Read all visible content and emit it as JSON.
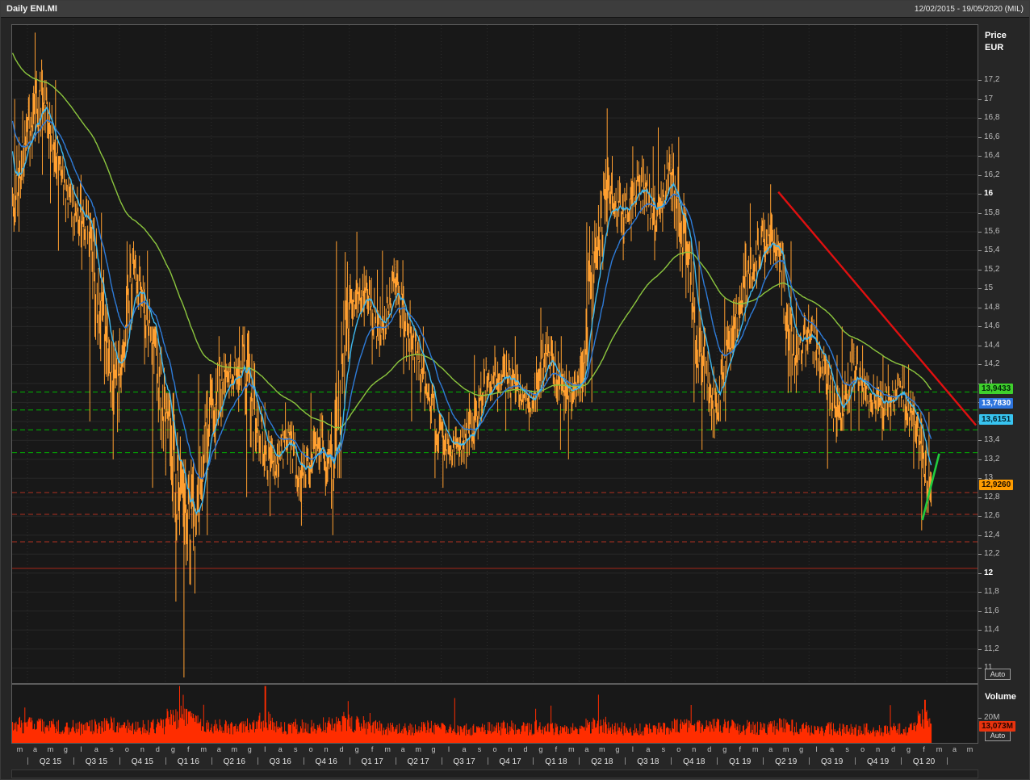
{
  "topbar": {
    "title": "Daily ENI.MI",
    "date_range": "12/02/2015 - 19/05/2020 (MIL)"
  },
  "axis": {
    "price_title_line1": "Price",
    "price_title_line2": "EUR",
    "volume_title": "Volume",
    "auto_label": "Auto",
    "volume_tick_label": "20M"
  },
  "price_markers": [
    {
      "name": "ma-green-marker",
      "text": "13,9433",
      "price": 13.9433,
      "bg": "#3fd12c",
      "fg": "#03290a"
    },
    {
      "name": "ma-blue-marker",
      "text": "13,7830",
      "price": 13.783,
      "bg": "#2d74dd",
      "fg": "#ffffff"
    },
    {
      "name": "ma-cyan-marker",
      "text": "13,6151",
      "price": 13.6151,
      "bg": "#38c4f0",
      "fg": "#03222e"
    },
    {
      "name": "last-price-marker",
      "text": "12,9260",
      "price": 12.926,
      "bg": "#ff9c00",
      "fg": "#221100"
    }
  ],
  "volume_marker": {
    "name": "volume-value-marker",
    "text": "13,073M",
    "value_m": 13.073,
    "bg": "#e8330e",
    "fg": "#2a0500"
  },
  "colors": {
    "bars": "#ff9f30",
    "volume": "#ff2d00",
    "grid_h": "#272727",
    "grid_v": "#2d2d2d",
    "level_green": "#00b400",
    "level_red_dashed": "#b03020",
    "level_red_solid": "#8c2318",
    "trend_red": "#e01010",
    "trend_green": "#21cc3e"
  },
  "chart_data": {
    "type": "ohlc",
    "instrument": "ENI.MI",
    "exchange": "MIL",
    "timeframe": "Daily",
    "period": "12/02/2015 - 19/05/2020",
    "price_axis": {
      "unit": "EUR",
      "min": 10.84,
      "max": 17.78,
      "tick_min": 11,
      "tick_max": 17.2,
      "tick_step": 0.2,
      "bold_ticks": [
        16,
        12
      ]
    },
    "volume_axis": {
      "max": 46,
      "tick": 20
    },
    "open_start": 15.9,
    "months": [
      "m",
      "a",
      "m",
      "g",
      "l",
      "a",
      "s",
      "o",
      "n",
      "d",
      "g",
      "f",
      "m",
      "a",
      "m",
      "g",
      "l",
      "a",
      "s",
      "o",
      "n",
      "d",
      "g",
      "f",
      "m",
      "a",
      "m",
      "g",
      "l",
      "a",
      "s",
      "o",
      "n",
      "d",
      "g",
      "f",
      "m",
      "a",
      "m",
      "g",
      "l",
      "a",
      "s",
      "o",
      "n",
      "d",
      "g",
      "f",
      "m",
      "a",
      "m",
      "g",
      "l",
      "a",
      "s",
      "o",
      "n",
      "d",
      "g",
      "f",
      "m",
      "a",
      "m"
    ],
    "quarters": [
      "Q2 15",
      "Q3 15",
      "Q4 15",
      "Q1 16",
      "Q2 16",
      "Q3 16",
      "Q4 16",
      "Q1 17",
      "Q2 17",
      "Q3 17",
      "Q4 17",
      "Q1 18",
      "Q2 18",
      "Q3 18",
      "Q4 18",
      "Q1 19",
      "Q2 19",
      "Q3 19",
      "Q4 19",
      "Q1 20"
    ],
    "monthly_ohlc": [
      {
        "c": 16.6,
        "h": 17.0,
        "l": 15.6
      },
      {
        "c": 17.0,
        "h": 17.7,
        "l": 16.2
      },
      {
        "c": 16.3,
        "h": 17.2,
        "l": 15.9
      },
      {
        "c": 15.8,
        "h": 16.4,
        "l": 15.4
      },
      {
        "c": 15.7,
        "h": 16.2,
        "l": 15.2
      },
      {
        "c": 14.5,
        "h": 15.8,
        "l": 13.6
      },
      {
        "c": 14.0,
        "h": 14.9,
        "l": 13.2
      },
      {
        "c": 15.2,
        "h": 15.5,
        "l": 13.9
      },
      {
        "c": 14.6,
        "h": 15.4,
        "l": 14.2
      },
      {
        "c": 13.8,
        "h": 14.6,
        "l": 12.9
      },
      {
        "c": 12.8,
        "h": 13.9,
        "l": 11.7
      },
      {
        "c": 12.5,
        "h": 13.2,
        "l": 10.9
      },
      {
        "c": 13.7,
        "h": 14.1,
        "l": 12.4
      },
      {
        "c": 14.1,
        "h": 14.5,
        "l": 13.2
      },
      {
        "c": 14.2,
        "h": 14.6,
        "l": 13.7
      },
      {
        "c": 13.6,
        "h": 14.6,
        "l": 12.8
      },
      {
        "c": 13.1,
        "h": 13.8,
        "l": 12.6
      },
      {
        "c": 13.4,
        "h": 13.8,
        "l": 12.9
      },
      {
        "c": 13.0,
        "h": 13.6,
        "l": 12.5
      },
      {
        "c": 13.4,
        "h": 13.9,
        "l": 12.9
      },
      {
        "c": 13.1,
        "h": 13.7,
        "l": 12.4
      },
      {
        "c": 14.8,
        "h": 15.5,
        "l": 13.0
      },
      {
        "c": 15.0,
        "h": 15.6,
        "l": 14.6
      },
      {
        "c": 14.6,
        "h": 15.2,
        "l": 14.2
      },
      {
        "c": 15.0,
        "h": 15.4,
        "l": 14.4
      },
      {
        "c": 14.5,
        "h": 15.3,
        "l": 14.1
      },
      {
        "c": 14.0,
        "h": 14.6,
        "l": 13.6
      },
      {
        "c": 13.4,
        "h": 14.0,
        "l": 13.0
      },
      {
        "c": 13.3,
        "h": 13.7,
        "l": 12.9
      },
      {
        "c": 13.5,
        "h": 13.9,
        "l": 13.1
      },
      {
        "c": 14.0,
        "h": 14.3,
        "l": 13.3
      },
      {
        "c": 14.1,
        "h": 14.4,
        "l": 13.7
      },
      {
        "c": 13.9,
        "h": 14.5,
        "l": 13.5
      },
      {
        "c": 13.8,
        "h": 14.1,
        "l": 13.5
      },
      {
        "c": 14.4,
        "h": 14.8,
        "l": 13.7
      },
      {
        "c": 13.8,
        "h": 14.5,
        "l": 13.3
      },
      {
        "c": 13.9,
        "h": 14.2,
        "l": 13.2
      },
      {
        "c": 15.3,
        "h": 15.7,
        "l": 13.8
      },
      {
        "c": 16.0,
        "h": 16.9,
        "l": 15.2
      },
      {
        "c": 15.8,
        "h": 16.4,
        "l": 15.3
      },
      {
        "c": 16.1,
        "h": 16.5,
        "l": 15.5
      },
      {
        "c": 15.8,
        "h": 16.5,
        "l": 15.3
      },
      {
        "c": 16.3,
        "h": 16.7,
        "l": 15.6
      },
      {
        "c": 15.4,
        "h": 16.6,
        "l": 14.9
      },
      {
        "c": 14.3,
        "h": 15.5,
        "l": 13.8
      },
      {
        "c": 13.8,
        "h": 14.6,
        "l": 13.3
      },
      {
        "c": 14.5,
        "h": 14.9,
        "l": 13.6
      },
      {
        "c": 15.1,
        "h": 15.5,
        "l": 14.3
      },
      {
        "c": 15.5,
        "h": 15.9,
        "l": 15.0
      },
      {
        "c": 15.4,
        "h": 16.1,
        "l": 15.1
      },
      {
        "c": 14.3,
        "h": 15.5,
        "l": 13.9
      },
      {
        "c": 14.5,
        "h": 14.9,
        "l": 13.9
      },
      {
        "c": 14.2,
        "h": 14.8,
        "l": 13.9
      },
      {
        "c": 13.6,
        "h": 14.3,
        "l": 13.1
      },
      {
        "c": 14.2,
        "h": 14.6,
        "l": 13.5
      },
      {
        "c": 13.9,
        "h": 14.4,
        "l": 13.5
      },
      {
        "c": 13.8,
        "h": 14.3,
        "l": 13.4
      },
      {
        "c": 13.9,
        "h": 14.2,
        "l": 13.5
      },
      {
        "c": 13.6,
        "h": 14.2,
        "l": 13.1
      },
      {
        "c": 12.93,
        "h": 13.7,
        "l": 12.45
      }
    ],
    "monthly_volume": [
      16,
      17,
      15,
      14,
      13,
      15,
      16,
      15,
      14,
      15,
      21,
      23,
      17,
      15,
      13,
      15,
      19,
      14,
      15,
      14,
      16,
      19,
      17,
      14,
      13,
      13,
      13,
      14,
      13,
      12,
      13,
      13,
      14,
      13,
      14,
      13,
      13,
      16,
      16,
      13,
      12,
      12,
      13,
      15,
      16,
      15,
      15,
      14,
      13,
      14,
      15,
      13,
      12,
      13,
      12,
      12,
      11,
      12,
      13,
      22
    ],
    "volume_spikes": [
      {
        "m": 16.5,
        "v": 45
      },
      {
        "m": 11.15,
        "v": 38
      },
      {
        "m": 0.8,
        "v": 28
      },
      {
        "m": 21.9,
        "v": 33
      },
      {
        "m": 44.3,
        "v": 30
      },
      {
        "m": 59.55,
        "v": 34
      }
    ],
    "horizontal_levels": {
      "green_dashed": [
        13.91,
        13.72,
        13.51,
        13.27
      ],
      "red_dashed": [
        12.85,
        12.62,
        12.33
      ],
      "red_solid": [
        12.05
      ]
    },
    "trendlines": [
      {
        "name": "resistance-trendline",
        "color": "#e01010",
        "width": 2.4,
        "from": {
          "month": 50.0,
          "price": 16.02
        },
        "to": {
          "month": 62.9,
          "price": 13.56
        }
      },
      {
        "name": "support-trendline",
        "color": "#21cc3e",
        "width": 2.6,
        "from": {
          "month": 59.4,
          "price": 12.56
        },
        "to": {
          "month": 60.5,
          "price": 13.26
        }
      }
    ],
    "moving_averages": [
      {
        "name": "ma-long-green",
        "period": 200,
        "seed": 17.5,
        "color": "#8cc63e",
        "last_value": 13.9433
      },
      {
        "name": "ma-mid-blue",
        "period": 50,
        "seed": 16.8,
        "color": "#2e7bd8",
        "last_value": 13.783
      },
      {
        "name": "ma-short-cyan",
        "period": 20,
        "seed": 16.5,
        "color": "#3fb9ef",
        "last_value": 13.6151
      }
    ],
    "last_price": 12.926,
    "last_volume_m": 13.073
  }
}
